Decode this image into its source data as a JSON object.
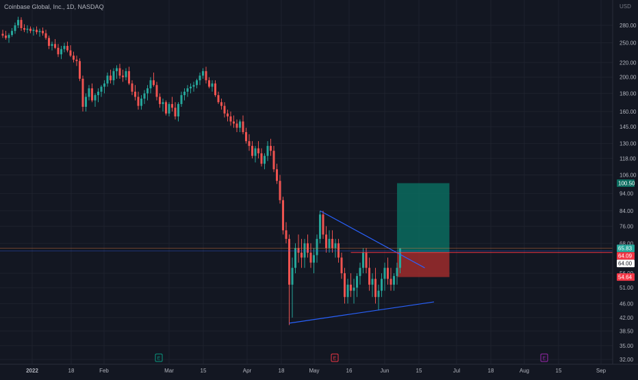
{
  "header": {
    "symbol_title": "Coinbase Global, Inc., 1D, NASDAQ"
  },
  "price_scale": {
    "currency": "USD",
    "ticks": [
      "280.00",
      "250.00",
      "220.00",
      "200.00",
      "180.00",
      "160.00",
      "145.00",
      "130.00",
      "118.00",
      "106.00",
      "94.00",
      "84.00",
      "76.00",
      "68.00",
      "56.00",
      "51.00",
      "46.00",
      "42.00",
      "38.50",
      "35.00",
      "32.00"
    ],
    "labels": [
      {
        "text": "100.50",
        "kind": "target"
      },
      {
        "text": "65.83",
        "kind": "last"
      },
      {
        "text": "64.09",
        "kind": "entry"
      },
      {
        "text": "64.00",
        "kind": "cursor"
      },
      {
        "text": "54.64",
        "kind": "stop"
      }
    ]
  },
  "time_scale": {
    "ticks": [
      {
        "label": "2022",
        "bold": true
      },
      {
        "label": "18"
      },
      {
        "label": "Feb"
      },
      {
        "label": "Mar"
      },
      {
        "label": "15"
      },
      {
        "label": "Apr"
      },
      {
        "label": "18"
      },
      {
        "label": "May"
      },
      {
        "label": "16"
      },
      {
        "label": "Jun"
      },
      {
        "label": "15"
      },
      {
        "label": "Jul"
      },
      {
        "label": "18"
      },
      {
        "label": "Aug"
      },
      {
        "label": "15"
      },
      {
        "label": "Sep"
      }
    ]
  },
  "events": [
    {
      "letter": "E",
      "kind": "earnings-past"
    },
    {
      "letter": "E",
      "kind": "earnings-recent"
    },
    {
      "letter": "E",
      "kind": "earnings-upcoming"
    }
  ],
  "colors": {
    "background": "#131722",
    "grid": "#1e222d",
    "up": "#26a69a",
    "down": "#ef5350",
    "trendline": "#2962ff",
    "profit_zone": "#0b6b5e",
    "loss_zone": "#9e2b2b",
    "entry_line": "#f23645"
  },
  "chart_data": {
    "type": "candlestick",
    "title": "Coinbase Global, Inc., 1D, NASDAQ",
    "y_scale": "log",
    "ylim": [
      32,
      330
    ],
    "candles_ohlc": [
      [
        265,
        272,
        258,
        262
      ],
      [
        262,
        270,
        255,
        258
      ],
      [
        258,
        266,
        250,
        263
      ],
      [
        263,
        275,
        260,
        270
      ],
      [
        270,
        285,
        265,
        280
      ],
      [
        280,
        296,
        275,
        290
      ],
      [
        290,
        295,
        270,
        275
      ],
      [
        275,
        282,
        268,
        272
      ],
      [
        272,
        280,
        266,
        274
      ],
      [
        274,
        278,
        266,
        270
      ],
      [
        270,
        276,
        262,
        272
      ],
      [
        272,
        278,
        264,
        268
      ],
      [
        268,
        274,
        260,
        270
      ],
      [
        270,
        276,
        262,
        266
      ],
      [
        266,
        272,
        255,
        258
      ],
      [
        258,
        262,
        240,
        245
      ],
      [
        245,
        252,
        238,
        248
      ],
      [
        248,
        256,
        240,
        242
      ],
      [
        242,
        248,
        228,
        232
      ],
      [
        232,
        245,
        225,
        240
      ],
      [
        240,
        250,
        235,
        245
      ],
      [
        245,
        252,
        235,
        238
      ],
      [
        238,
        246,
        228,
        230
      ],
      [
        230,
        236,
        220,
        224
      ],
      [
        224,
        230,
        215,
        222
      ],
      [
        222,
        226,
        195,
        198
      ],
      [
        198,
        202,
        160,
        165
      ],
      [
        165,
        180,
        160,
        176
      ],
      [
        176,
        190,
        172,
        186
      ],
      [
        186,
        192,
        170,
        172
      ],
      [
        172,
        180,
        165,
        178
      ],
      [
        178,
        186,
        170,
        182
      ],
      [
        182,
        190,
        176,
        188
      ],
      [
        188,
        196,
        180,
        192
      ],
      [
        192,
        206,
        188,
        202
      ],
      [
        202,
        210,
        192,
        196
      ],
      [
        196,
        212,
        190,
        208
      ],
      [
        208,
        216,
        198,
        212
      ],
      [
        212,
        218,
        198,
        202
      ],
      [
        202,
        210,
        194,
        200
      ],
      [
        200,
        212,
        196,
        208
      ],
      [
        208,
        214,
        190,
        192
      ],
      [
        192,
        196,
        178,
        182
      ],
      [
        182,
        190,
        172,
        176
      ],
      [
        176,
        182,
        162,
        166
      ],
      [
        166,
        178,
        162,
        174
      ],
      [
        174,
        184,
        168,
        180
      ],
      [
        180,
        190,
        172,
        186
      ],
      [
        186,
        200,
        180,
        196
      ],
      [
        196,
        206,
        188,
        190
      ],
      [
        190,
        194,
        172,
        176
      ],
      [
        176,
        180,
        164,
        168
      ],
      [
        168,
        174,
        160,
        170
      ],
      [
        170,
        172,
        156,
        158
      ],
      [
        158,
        170,
        155,
        168
      ],
      [
        168,
        176,
        160,
        164
      ],
      [
        164,
        170,
        152,
        155
      ],
      [
        155,
        170,
        150,
        168
      ],
      [
        168,
        182,
        165,
        178
      ],
      [
        178,
        186,
        172,
        182
      ],
      [
        182,
        190,
        176,
        186
      ],
      [
        186,
        192,
        180,
        188
      ],
      [
        188,
        194,
        182,
        190
      ],
      [
        190,
        198,
        186,
        196
      ],
      [
        196,
        206,
        190,
        202
      ],
      [
        202,
        212,
        198,
        208
      ],
      [
        208,
        214,
        192,
        196
      ],
      [
        196,
        200,
        186,
        188
      ],
      [
        188,
        196,
        182,
        192
      ],
      [
        192,
        196,
        176,
        178
      ],
      [
        178,
        182,
        168,
        170
      ],
      [
        170,
        174,
        162,
        166
      ],
      [
        166,
        170,
        154,
        158
      ],
      [
        158,
        162,
        150,
        155
      ],
      [
        155,
        160,
        146,
        150
      ],
      [
        150,
        156,
        144,
        148
      ],
      [
        148,
        152,
        140,
        144
      ],
      [
        144,
        152,
        140,
        150
      ],
      [
        150,
        156,
        138,
        140
      ],
      [
        140,
        144,
        130,
        132
      ],
      [
        132,
        138,
        124,
        128
      ],
      [
        128,
        132,
        118,
        120
      ],
      [
        120,
        128,
        115,
        126
      ],
      [
        126,
        132,
        118,
        122
      ],
      [
        122,
        126,
        112,
        114
      ],
      [
        114,
        122,
        110,
        120
      ],
      [
        120,
        132,
        116,
        128
      ],
      [
        128,
        134,
        120,
        124
      ],
      [
        124,
        128,
        108,
        110
      ],
      [
        110,
        114,
        100,
        102
      ],
      [
        102,
        106,
        88,
        90
      ],
      [
        90,
        92,
        72,
        74
      ],
      [
        74,
        78,
        68,
        70
      ],
      [
        70,
        72,
        40,
        52
      ],
      [
        52,
        62,
        42,
        58
      ],
      [
        58,
        68,
        56,
        66
      ],
      [
        66,
        72,
        60,
        64
      ],
      [
        64,
        70,
        58,
        62
      ],
      [
        62,
        70,
        58,
        68
      ],
      [
        68,
        72,
        62,
        64
      ],
      [
        64,
        68,
        58,
        60
      ],
      [
        60,
        66,
        56,
        63
      ],
      [
        63,
        72,
        60,
        70
      ],
      [
        70,
        84,
        68,
        82
      ],
      [
        82,
        84,
        70,
        72
      ],
      [
        72,
        76,
        64,
        66
      ],
      [
        66,
        74,
        64,
        70
      ],
      [
        70,
        74,
        64,
        66
      ],
      [
        66,
        70,
        62,
        68
      ],
      [
        68,
        70,
        60,
        62
      ],
      [
        62,
        64,
        54,
        56
      ],
      [
        56,
        58,
        46,
        48
      ],
      [
        48,
        54,
        46,
        52
      ],
      [
        52,
        56,
        48,
        50
      ],
      [
        50,
        54,
        46,
        51
      ],
      [
        51,
        56,
        48,
        55
      ],
      [
        55,
        60,
        52,
        58
      ],
      [
        58,
        66,
        56,
        64
      ],
      [
        64,
        66,
        56,
        58
      ],
      [
        58,
        62,
        50,
        52
      ],
      [
        52,
        56,
        48,
        54
      ],
      [
        54,
        58,
        46,
        48
      ],
      [
        48,
        52,
        44,
        50
      ],
      [
        50,
        56,
        48,
        54
      ],
      [
        54,
        60,
        50,
        58
      ],
      [
        58,
        62,
        52,
        54
      ],
      [
        54,
        58,
        50,
        52
      ],
      [
        52,
        56,
        50,
        55
      ],
      [
        55,
        60,
        52,
        58
      ],
      [
        58,
        66,
        56,
        65.83
      ]
    ],
    "trendlines": [
      {
        "name": "descending-resistance",
        "from": {
          "bar": 103,
          "price": 84
        },
        "to": {
          "bar": 137,
          "price": 58
        }
      },
      {
        "name": "ascending-support",
        "from": {
          "bar": 93,
          "price": 40.5
        },
        "to": {
          "bar": 140,
          "price": 46.5
        }
      }
    ],
    "position": {
      "side": "long",
      "entry": 64.09,
      "target": 100.5,
      "stop": 54.64,
      "last_price": 65.83,
      "start_bar": 128,
      "end_bar": 145
    }
  }
}
